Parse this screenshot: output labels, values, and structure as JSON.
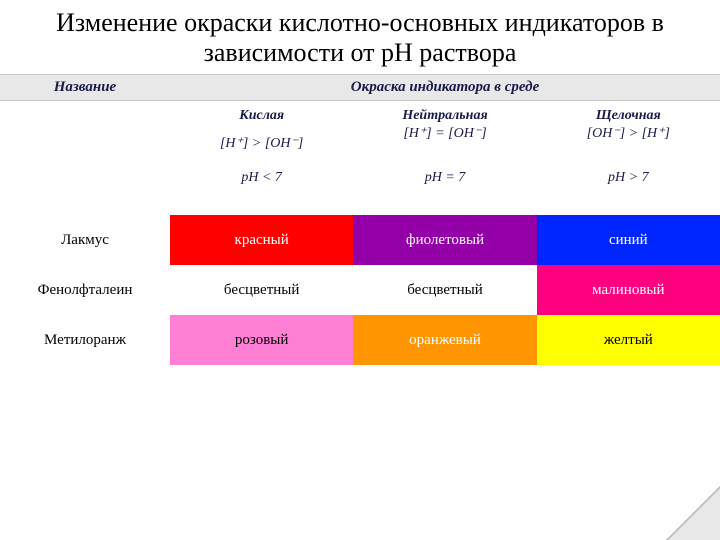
{
  "title": "Изменение окраски кислотно-основных индикаторов в зависимости от рН раствора",
  "header": {
    "col_name": "Название",
    "col_medium": "Окраска индикатора в среде"
  },
  "conditions": {
    "acidic": {
      "label": "Кислая",
      "formula": "[H⁺] > [OH⁻]",
      "ph": "pH < 7"
    },
    "neutral": {
      "label": "Нейтральная",
      "formula": "[H⁺] = [OH⁻]",
      "ph": "pH = 7"
    },
    "basic": {
      "label": "Щелочная",
      "formula": "[OH⁻] > [H⁺]",
      "ph": "pH > 7"
    }
  },
  "rows": [
    {
      "name": "Лакмус",
      "acidic": {
        "text": "красный",
        "bg": "#ff0000",
        "fg": "#ffffff"
      },
      "neutral": {
        "text": "фиолетовый",
        "bg": "#9400a8",
        "fg": "#ffffff"
      },
      "basic": {
        "text": "синий",
        "bg": "#0026ff",
        "fg": "#ffffff"
      }
    },
    {
      "name": "Фенолфталеин",
      "acidic": {
        "text": "бесцветный",
        "bg": "#ffffff",
        "fg": "#000000"
      },
      "neutral": {
        "text": "бесцветный",
        "bg": "#ffffff",
        "fg": "#000000"
      },
      "basic": {
        "text": "малиновый",
        "bg": "#ff007f",
        "fg": "#ffffff"
      }
    },
    {
      "name": "Метилоранж",
      "acidic": {
        "text": "розовый",
        "bg": "#ff7fd4",
        "fg": "#000000"
      },
      "neutral": {
        "text": "оранжевый",
        "bg": "#ff9500",
        "fg": "#ffffff"
      },
      "basic": {
        "text": "желтый",
        "bg": "#ffff00",
        "fg": "#000000"
      }
    }
  ]
}
